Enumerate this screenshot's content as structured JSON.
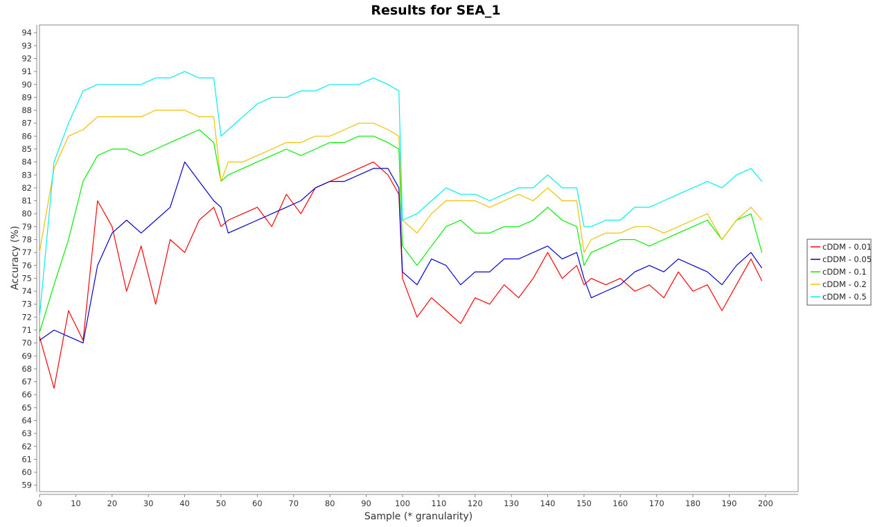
{
  "chart_data": {
    "type": "line",
    "title": "Results for SEA_1",
    "xlabel": "Sample (* granularity)",
    "ylabel": "Accuracy (%)",
    "xlim": [
      0,
      209
    ],
    "ylim": [
      58.5,
      94.6
    ],
    "xticks": [
      0,
      10,
      20,
      30,
      40,
      50,
      60,
      70,
      80,
      90,
      100,
      110,
      120,
      130,
      140,
      150,
      160,
      170,
      180,
      190,
      200
    ],
    "yticks": [
      59,
      60,
      61,
      62,
      63,
      64,
      65,
      66,
      67,
      68,
      69,
      70,
      71,
      72,
      73,
      74,
      75,
      76,
      77,
      78,
      79,
      80,
      81,
      82,
      83,
      84,
      85,
      86,
      87,
      88,
      89,
      90,
      91,
      92,
      93,
      94
    ],
    "grid": false,
    "legend_position": "right",
    "x": [
      0,
      4,
      8,
      12,
      16,
      20,
      24,
      28,
      32,
      36,
      40,
      44,
      48,
      50,
      52,
      56,
      60,
      64,
      68,
      72,
      76,
      80,
      84,
      88,
      92,
      96,
      99,
      100,
      104,
      108,
      112,
      116,
      120,
      124,
      128,
      132,
      136,
      140,
      144,
      148,
      150,
      152,
      156,
      160,
      164,
      168,
      172,
      176,
      180,
      184,
      188,
      192,
      196,
      199
    ],
    "series": [
      {
        "name": "cDDM - 0.01",
        "color": "#ff0000",
        "values": [
          70.5,
          66.5,
          72.5,
          70.2,
          81.0,
          79.0,
          74.0,
          77.5,
          73.0,
          78.0,
          77.0,
          79.5,
          80.5,
          79.0,
          79.5,
          80.0,
          80.5,
          79.0,
          81.5,
          80.0,
          82.0,
          82.5,
          83.0,
          83.5,
          84.0,
          83.0,
          81.5,
          75.0,
          72.0,
          73.5,
          72.5,
          71.5,
          73.5,
          73.0,
          74.5,
          73.5,
          75.0,
          77.0,
          75.0,
          76.0,
          74.5,
          75.0,
          74.5,
          75.0,
          74.0,
          74.5,
          73.5,
          75.5,
          74.0,
          74.5,
          72.5,
          74.5,
          76.5,
          74.8
        ]
      },
      {
        "name": "cDDM - 0.05",
        "color": "#0000cc",
        "values": [
          70.2,
          71.0,
          70.5,
          70.0,
          76.0,
          78.5,
          79.5,
          78.5,
          79.5,
          80.5,
          84.0,
          82.5,
          81.0,
          80.5,
          78.5,
          79.0,
          79.5,
          80.0,
          80.5,
          81.0,
          82.0,
          82.5,
          82.5,
          83.0,
          83.5,
          83.5,
          82.0,
          75.5,
          74.5,
          76.5,
          76.0,
          74.5,
          75.5,
          75.5,
          76.5,
          76.5,
          77.0,
          77.5,
          76.5,
          77.0,
          75.0,
          73.5,
          74.0,
          74.5,
          75.5,
          76.0,
          75.5,
          76.5,
          76.0,
          75.5,
          74.5,
          76.0,
          77.0,
          75.8
        ]
      },
      {
        "name": "cDDM - 0.1",
        "color": "#00ee00",
        "values": [
          70.8,
          74.5,
          78.0,
          82.5,
          84.5,
          85.0,
          85.0,
          84.5,
          85.0,
          85.5,
          86.0,
          86.5,
          85.5,
          82.5,
          83.0,
          83.5,
          84.0,
          84.5,
          85.0,
          84.5,
          85.0,
          85.5,
          85.5,
          86.0,
          86.0,
          85.5,
          85.0,
          77.5,
          76.0,
          77.5,
          79.0,
          79.5,
          78.5,
          78.5,
          79.0,
          79.0,
          79.5,
          80.5,
          79.5,
          79.0,
          76.0,
          77.0,
          77.5,
          78.0,
          78.0,
          77.5,
          78.0,
          78.5,
          79.0,
          79.5,
          78.0,
          79.5,
          80.0,
          77.0
        ]
      },
      {
        "name": "cDDM - 0.2",
        "color": "#f0c000",
        "values": [
          77.0,
          83.5,
          86.0,
          86.5,
          87.5,
          87.5,
          87.5,
          87.5,
          88.0,
          88.0,
          88.0,
          87.5,
          87.5,
          82.5,
          84.0,
          84.0,
          84.5,
          85.0,
          85.5,
          85.5,
          86.0,
          86.0,
          86.5,
          87.0,
          87.0,
          86.5,
          86.0,
          79.5,
          78.5,
          80.0,
          81.0,
          81.0,
          81.0,
          80.5,
          81.0,
          81.5,
          81.0,
          82.0,
          81.0,
          81.0,
          77.0,
          78.0,
          78.5,
          78.5,
          79.0,
          79.0,
          78.5,
          79.0,
          79.5,
          80.0,
          78.0,
          79.5,
          80.5,
          79.5
        ]
      },
      {
        "name": "cDDM - 0.5",
        "color": "#00eeee",
        "values": [
          72.0,
          84.0,
          87.0,
          89.5,
          90.0,
          90.0,
          90.0,
          90.0,
          90.5,
          90.5,
          91.0,
          90.5,
          90.5,
          86.0,
          86.5,
          87.5,
          88.5,
          89.0,
          89.0,
          89.5,
          89.5,
          90.0,
          90.0,
          90.0,
          90.5,
          90.0,
          89.5,
          79.5,
          80.0,
          81.0,
          82.0,
          81.5,
          81.5,
          81.0,
          81.5,
          82.0,
          82.0,
          83.0,
          82.0,
          82.0,
          79.0,
          79.0,
          79.5,
          79.5,
          80.5,
          80.5,
          81.0,
          81.5,
          82.0,
          82.5,
          82.0,
          83.0,
          83.5,
          82.5
        ]
      }
    ]
  }
}
